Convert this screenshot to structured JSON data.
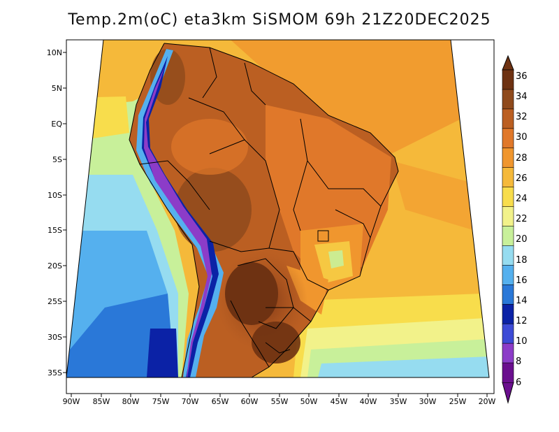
{
  "title": "Temp.2m(oC) eta3km SiSMOM 69h 21Z20DEC2025",
  "lat_labels": [
    "10N",
    "5N",
    "EQ",
    "5S",
    "10S",
    "15S",
    "20S",
    "25S",
    "30S",
    "35S"
  ],
  "lon_labels": [
    "90W",
    "85W",
    "80W",
    "75W",
    "70W",
    "65W",
    "60W",
    "55W",
    "50W",
    "45W",
    "40W",
    "35W",
    "30W",
    "25W",
    "20W"
  ],
  "colorbar": {
    "labels": [
      "36",
      "34",
      "32",
      "30",
      "28",
      "26",
      "24",
      "22",
      "20",
      "18",
      "16",
      "14",
      "12",
      "10",
      "8",
      "6"
    ],
    "colors": [
      "#6e3212",
      "#8f4a1c",
      "#bb5f22",
      "#e0782a",
      "#f0962e",
      "#f5b93a",
      "#f8dd4c",
      "#f2f28a",
      "#c8f09a",
      "#96dcf0",
      "#55b0ee",
      "#2a78d8",
      "#0b22a6",
      "#3d4bd6",
      "#8c3cc8",
      "#6a0f8e"
    ]
  }
}
